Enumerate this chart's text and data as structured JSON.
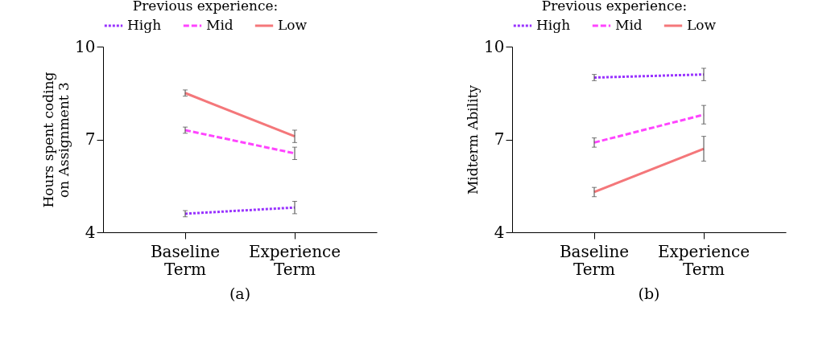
{
  "chart_data": [
    {
      "type": "line",
      "ylabel": "Hours spent coding on Assignment 3",
      "legend_title": "Previous experience:",
      "legend": "top",
      "categories": [
        "Baseline Term",
        "Experience Term"
      ],
      "ylim": [
        4,
        10
      ],
      "yticks": [
        4,
        7,
        10
      ],
      "grid": false,
      "marker": "none",
      "annotations": [
        "(a)"
      ],
      "series": [
        {
          "name": "High",
          "color": "#9933ff",
          "line_style": "dotted",
          "values": [
            4.6,
            4.8
          ],
          "errors": [
            0.1,
            0.2
          ]
        },
        {
          "name": "Mid",
          "color": "#ff44ff",
          "line_style": "dashed",
          "values": [
            7.3,
            6.55
          ],
          "errors": [
            0.1,
            0.2
          ]
        },
        {
          "name": "Low",
          "color": "#f4777a",
          "line_style": "solid",
          "values": [
            8.5,
            7.1
          ],
          "errors": [
            0.1,
            0.2
          ]
        }
      ]
    },
    {
      "type": "line",
      "ylabel": "Midterm Ability",
      "legend_title": "Previous experience:",
      "legend": "top",
      "categories": [
        "Baseline Term",
        "Experience Term"
      ],
      "ylim": [
        4,
        10
      ],
      "yticks": [
        4,
        7,
        10
      ],
      "grid": false,
      "marker": "none",
      "annotations": [
        "(b)"
      ],
      "series": [
        {
          "name": "High",
          "color": "#9933ff",
          "line_style": "dotted",
          "values": [
            9.0,
            9.1
          ],
          "errors": [
            0.1,
            0.2
          ]
        },
        {
          "name": "Mid",
          "color": "#ff44ff",
          "line_style": "dashed",
          "values": [
            6.9,
            7.8
          ],
          "errors": [
            0.15,
            0.3
          ]
        },
        {
          "name": "Low",
          "color": "#f4777a",
          "line_style": "solid",
          "values": [
            5.3,
            6.7
          ],
          "errors": [
            0.15,
            0.4
          ]
        }
      ]
    }
  ]
}
